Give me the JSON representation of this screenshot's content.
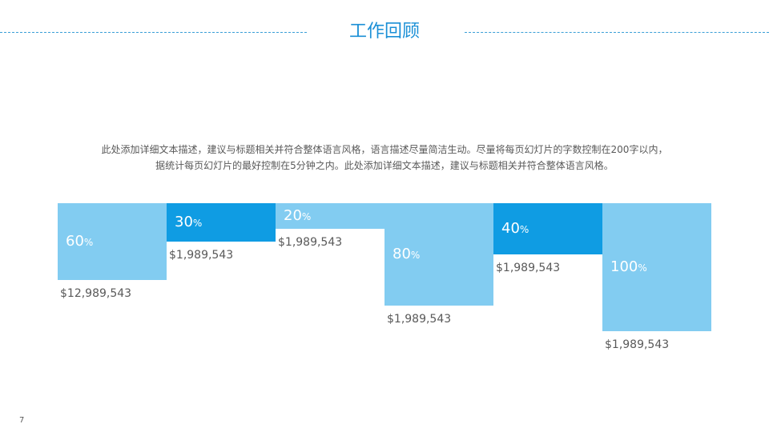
{
  "slide": {
    "title": "工作回顾",
    "description_lines": [
      "此处添加详细文本描述，建议与标题相关并符合整体语言风格，语言描述尽量简洁生动。尽量将每页幻灯片的字数控制在200字以内，",
      "据统计每页幻灯片的最好控制在5分钟之内。此处添加详细文本描述，建议与标题相关并符合整体语言风格。"
    ],
    "page_number": "7"
  },
  "colors": {
    "accent": "#1a8fd6",
    "light_bar": "#82ccf1",
    "dark_bar": "#0f9ce3",
    "text_gray": "#595959"
  },
  "chart_data": {
    "type": "bar",
    "title": "",
    "items": [
      {
        "percent": 60,
        "percent_label": "60",
        "unit": "%",
        "amount": "$12,989,543",
        "style": "light"
      },
      {
        "percent": 30,
        "percent_label": "30",
        "unit": "%",
        "amount": "$1,989,543",
        "style": "dark"
      },
      {
        "percent": 20,
        "percent_label": "20",
        "unit": "%",
        "amount": "$1,989,543",
        "style": "light"
      },
      {
        "percent": 80,
        "percent_label": "80",
        "unit": "%",
        "amount": "$1,989,543",
        "style": "light"
      },
      {
        "percent": 40,
        "percent_label": "40",
        "unit": "%",
        "amount": "$1,989,543",
        "style": "dark"
      },
      {
        "percent": 100,
        "percent_label": "100",
        "unit": "%",
        "amount": "$1,989,543",
        "style": "light"
      }
    ],
    "ylim": [
      0,
      100
    ]
  }
}
